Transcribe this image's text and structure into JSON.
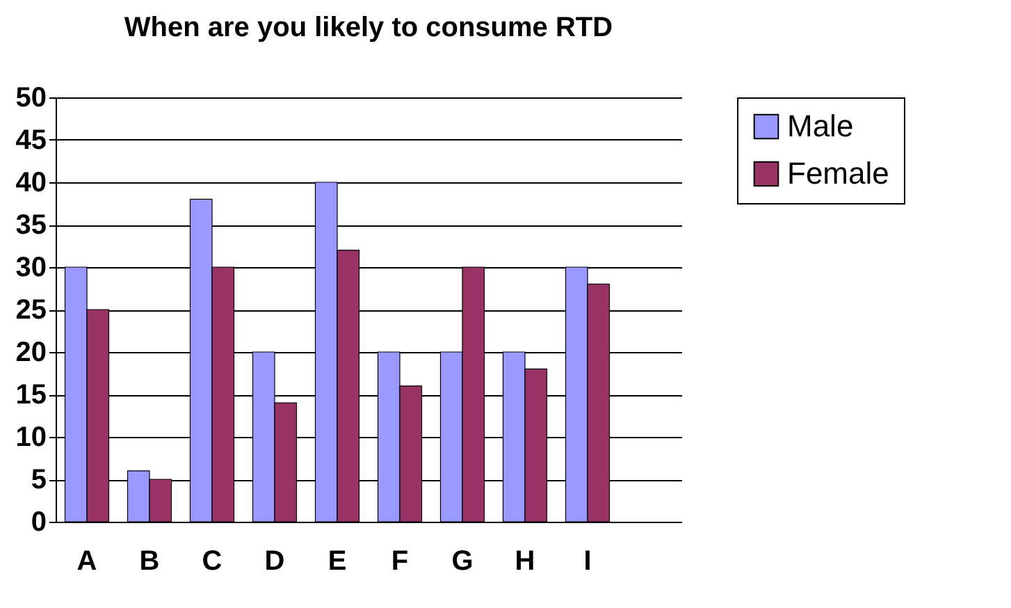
{
  "chart_data": {
    "type": "bar",
    "title": "When are you likely to consume RTD",
    "categories": [
      "A",
      "B",
      "C",
      "D",
      "E",
      "F",
      "G",
      "H",
      "I",
      null
    ],
    "series": [
      {
        "name": "Male",
        "color": "#9999ff",
        "values": [
          30,
          6,
          38,
          20,
          40,
          20,
          20,
          20,
          30,
          null
        ]
      },
      {
        "name": "Female",
        "color": "#993366",
        "values": [
          25,
          5,
          30,
          14,
          32,
          16,
          30,
          18,
          28,
          null
        ]
      }
    ],
    "ylim": [
      0,
      50
    ],
    "yticks": [
      0,
      5,
      10,
      15,
      20,
      25,
      30,
      35,
      40,
      45,
      50
    ],
    "grid": "y",
    "legend": "right"
  }
}
